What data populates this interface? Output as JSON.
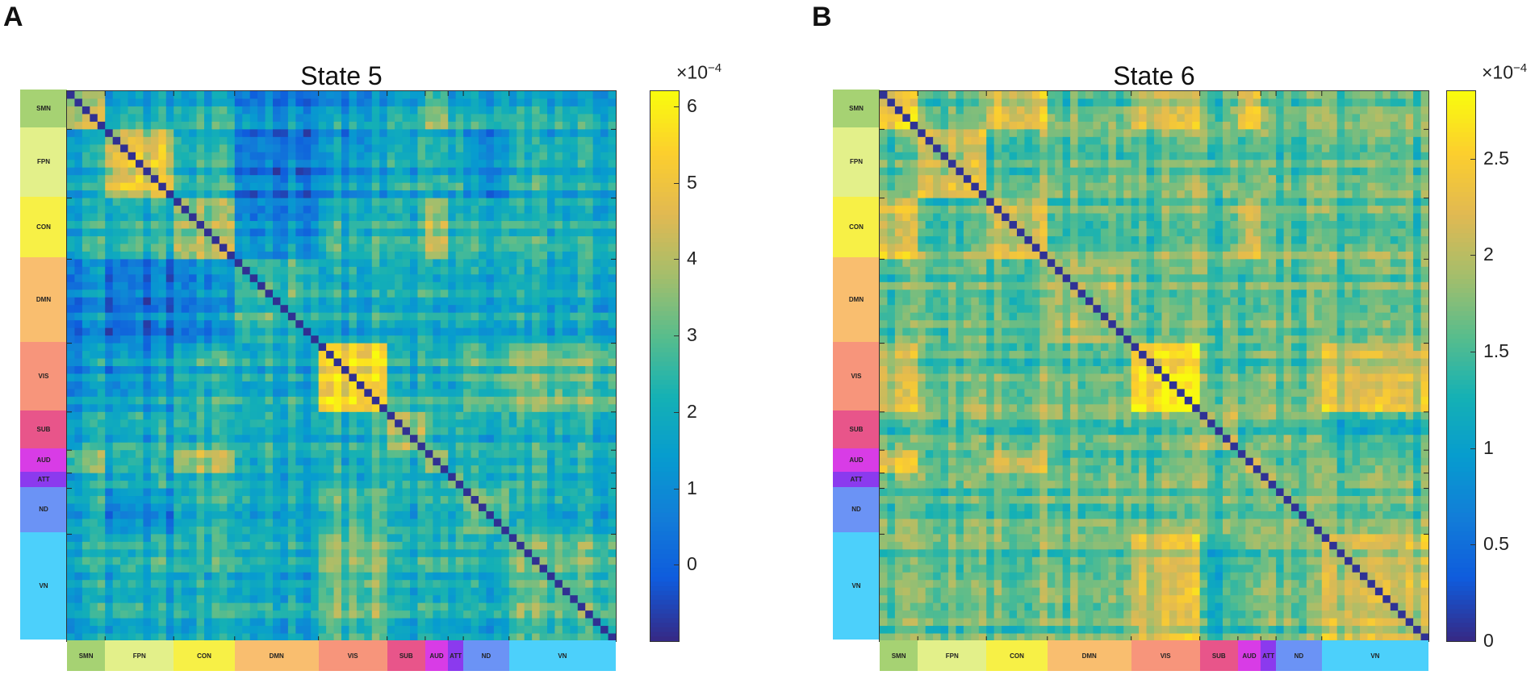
{
  "panels": [
    {
      "letter": "A",
      "chart_data": {
        "type": "heatmap",
        "title": "State 5",
        "colormap": "parula",
        "colorbar": {
          "exponent_base": "×10",
          "exponent_power": "−4",
          "ticks": [
            "0",
            "1",
            "2",
            "3",
            "4",
            "5",
            "6"
          ],
          "range": [
            -1.0,
            6.2
          ]
        },
        "node_count": 72,
        "networks": [
          {
            "label": "SMN",
            "size": 5,
            "color": "#a6d273"
          },
          {
            "label": "FPN",
            "size": 9,
            "color": "#e3f08a"
          },
          {
            "label": "CON",
            "size": 8,
            "color": "#f7f046"
          },
          {
            "label": "DMN",
            "size": 11,
            "color": "#f9be6f"
          },
          {
            "label": "VIS",
            "size": 9,
            "color": "#f7957b"
          },
          {
            "label": "SUB",
            "size": 5,
            "color": "#e8558a"
          },
          {
            "label": "AUD",
            "size": 3,
            "color": "#d83ce6"
          },
          {
            "label": "ATT",
            "size": 2,
            "color": "#8b3aee"
          },
          {
            "label": "ND",
            "size": 6,
            "color": "#6b93f5"
          },
          {
            "label": "VN",
            "size": 14,
            "color": "#4cd0fb"
          }
        ],
        "background_value": 2.0,
        "diagonal_value": -0.9,
        "blocks": [
          {
            "rows": "SMN",
            "cols": "SMN",
            "value": 4.3
          },
          {
            "rows": "FPN",
            "cols": "FPN",
            "value": 4.6
          },
          {
            "rows": "CON",
            "cols": "CON",
            "value": 3.4
          },
          {
            "rows": "DMN",
            "cols": "DMN",
            "value": 2.8
          },
          {
            "rows": "VIS",
            "cols": "VIS",
            "value": 5.2
          },
          {
            "rows": "SUB",
            "cols": "SUB",
            "value": 3.6
          },
          {
            "rows": "AUD",
            "cols": "AUD",
            "value": 3.2
          },
          {
            "rows": "ATT",
            "cols": "ATT",
            "value": 3.0
          },
          {
            "rows": "ND",
            "cols": "ND",
            "value": 3.1
          },
          {
            "rows": "VN",
            "cols": "VN",
            "value": 2.9
          },
          {
            "rows": "FPN",
            "cols": "DMN",
            "value": 0.6
          },
          {
            "rows": "CON",
            "cols": "DMN",
            "value": 0.9
          },
          {
            "rows": "SMN",
            "cols": "DMN",
            "value": 1.2
          },
          {
            "rows": "VIS",
            "cols": "FPN",
            "value": 1.3
          },
          {
            "rows": "VIS",
            "cols": "SMN",
            "value": 1.4
          },
          {
            "rows": "AUD",
            "cols": "SMN",
            "value": 3.3
          },
          {
            "rows": "AUD",
            "cols": "CON",
            "value": 3.6
          },
          {
            "rows": "VN",
            "cols": "VIS",
            "value": 3.1
          },
          {
            "rows": "ND",
            "cols": "VIS",
            "value": 2.7
          },
          {
            "rows": "FPN",
            "cols": "ND",
            "value": 1.1
          }
        ]
      }
    },
    {
      "letter": "B",
      "chart_data": {
        "type": "heatmap",
        "title": "State 6",
        "colormap": "parula",
        "colorbar": {
          "exponent_base": "×10",
          "exponent_power": "−4",
          "ticks": [
            "0",
            "0.5",
            "1",
            "1.5",
            "2",
            "2.5"
          ],
          "range": [
            0.0,
            2.85
          ]
        },
        "node_count": 72,
        "networks": [
          {
            "label": "SMN",
            "size": 5,
            "color": "#a6d273"
          },
          {
            "label": "FPN",
            "size": 9,
            "color": "#e3f08a"
          },
          {
            "label": "CON",
            "size": 8,
            "color": "#f7f046"
          },
          {
            "label": "DMN",
            "size": 11,
            "color": "#f9be6f"
          },
          {
            "label": "VIS",
            "size": 9,
            "color": "#f7957b"
          },
          {
            "label": "SUB",
            "size": 5,
            "color": "#e8558a"
          },
          {
            "label": "AUD",
            "size": 3,
            "color": "#d83ce6"
          },
          {
            "label": "ATT",
            "size": 2,
            "color": "#8b3aee"
          },
          {
            "label": "ND",
            "size": 6,
            "color": "#6b93f5"
          },
          {
            "label": "VN",
            "size": 14,
            "color": "#4cd0fb"
          }
        ],
        "background_value": 1.6,
        "diagonal_value": 0.05,
        "blocks": [
          {
            "rows": "SMN",
            "cols": "SMN",
            "value": 2.4
          },
          {
            "rows": "FPN",
            "cols": "FPN",
            "value": 2.1
          },
          {
            "rows": "CON",
            "cols": "CON",
            "value": 2.2
          },
          {
            "rows": "DMN",
            "cols": "DMN",
            "value": 1.9
          },
          {
            "rows": "VIS",
            "cols": "VIS",
            "value": 2.55
          },
          {
            "rows": "SUB",
            "cols": "SUB",
            "value": 1.9
          },
          {
            "rows": "AUD",
            "cols": "AUD",
            "value": 2.1
          },
          {
            "rows": "ATT",
            "cols": "ATT",
            "value": 1.8
          },
          {
            "rows": "ND",
            "cols": "ND",
            "value": 1.7
          },
          {
            "rows": "VN",
            "cols": "VN",
            "value": 2.0
          },
          {
            "rows": "SMN",
            "cols": "CON",
            "value": 2.2
          },
          {
            "rows": "SMN",
            "cols": "VIS",
            "value": 2.1
          },
          {
            "rows": "AUD",
            "cols": "SMN",
            "value": 2.3
          },
          {
            "rows": "AUD",
            "cols": "CON",
            "value": 2.3
          },
          {
            "rows": "VN",
            "cols": "VIS",
            "value": 2.1
          },
          {
            "rows": "CON",
            "cols": "AUD",
            "value": 2.2
          },
          {
            "rows": "ND",
            "cols": "FPN",
            "value": 1.5
          },
          {
            "rows": "SUB",
            "cols": "VN",
            "value": 1.3
          }
        ]
      }
    }
  ]
}
